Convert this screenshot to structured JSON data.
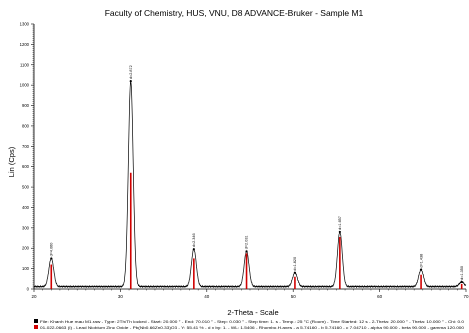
{
  "chart_data": {
    "type": "line",
    "title": "Faculty of Chemistry, HUS, VNU, D8 ADVANCE-Bruker - Sample M1",
    "xlabel": "2-Theta - Scale",
    "ylabel": "Lin (Cps)",
    "xlim": [
      20,
      70
    ],
    "ylim": [
      0,
      1300
    ],
    "x_ticks": [
      "20",
      "30",
      "40",
      "50",
      "60",
      "70"
    ],
    "y_ticks": [
      "0",
      "100",
      "200",
      "300",
      "400",
      "500",
      "600",
      "700",
      "800",
      "900",
      "1000",
      "1100",
      "1200",
      "1300"
    ],
    "grid": false,
    "series": [
      {
        "color": "#000000",
        "peaks": [
          {
            "x": 22.0,
            "y": 150,
            "label": "d=4.060"
          },
          {
            "x": 31.2,
            "y": 1020,
            "label": "d=2.872"
          },
          {
            "x": 38.5,
            "y": 195,
            "label": "d=2.346"
          },
          {
            "x": 44.6,
            "y": 185,
            "label": "d=2.031"
          },
          {
            "x": 50.2,
            "y": 80,
            "label": "d=1.820"
          },
          {
            "x": 55.4,
            "y": 280,
            "label": "d=1.657"
          },
          {
            "x": 64.8,
            "y": 95,
            "label": "d=1.438"
          },
          {
            "x": 69.5,
            "y": 35,
            "label": "d=1.350"
          }
        ]
      },
      {
        "color": "#d00000",
        "sticks": [
          {
            "x": 22.0,
            "y": 120
          },
          {
            "x": 31.2,
            "y": 570
          },
          {
            "x": 38.5,
            "y": 150
          },
          {
            "x": 44.6,
            "y": 175
          },
          {
            "x": 50.2,
            "y": 60
          },
          {
            "x": 55.4,
            "y": 255
          },
          {
            "x": 64.8,
            "y": 70
          },
          {
            "x": 69.5,
            "y": 25
          }
        ]
      }
    ],
    "footer": {
      "line1": "File: Khanh Hue mau M1.raw - Type: 2Th/Th locked - Start: 20.000 ° - End: 70.010 ° - Step: 0.030 ° - Step time: 1. s - Temp.: 25 °C (Room) - Time Started: 12 s - 2-Theta: 20.000 ° - Theta: 10.000 ° - Chi: 0.0",
      "line2": "01-022-0663 (I) - Lead Niobium Zinc Oxide - Pb(Nb0.66Zn0.33)O3 - Y: 55.41 % - d x by: 1. - WL: 1.5406 - Rhombo.H.axes - a 5.74160 - b 5.74160 - c 7.04710 - alpha 90.000 - beta 90.000 - gamma 120.000",
      "marker1_color": "#000000",
      "marker2_color": "#d00000"
    }
  }
}
